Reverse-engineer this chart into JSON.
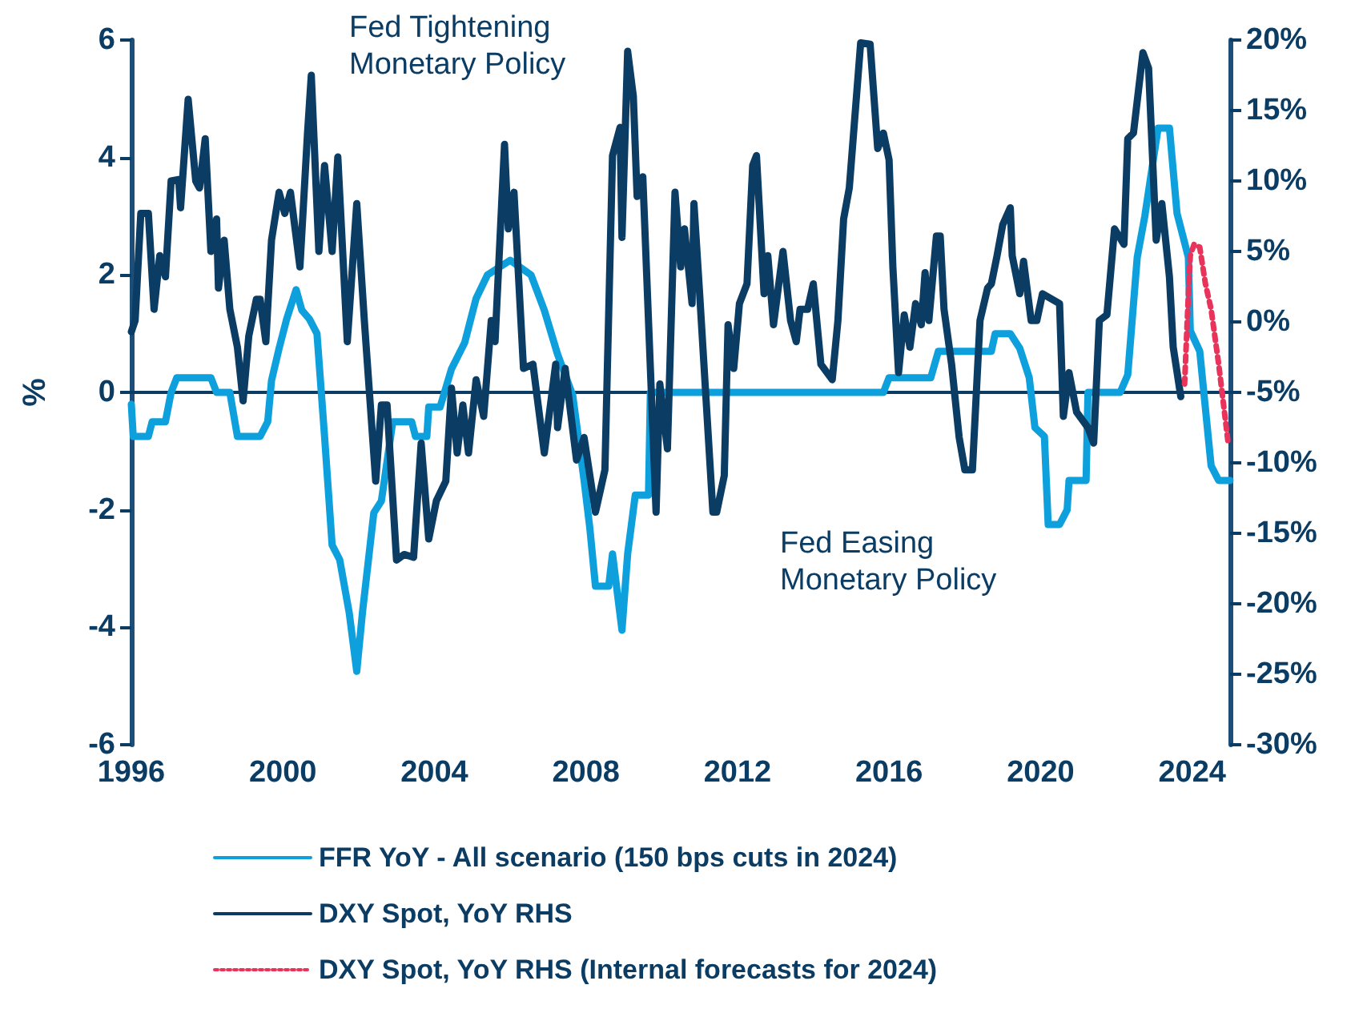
{
  "chart_data": {
    "type": "line",
    "ylabel": "%",
    "xlim": [
      1996,
      2025
    ],
    "xticks": [
      1996,
      2000,
      2004,
      2008,
      2012,
      2016,
      2020,
      2024
    ],
    "ylim": [
      -6,
      6
    ],
    "yticks": [
      -6,
      -4,
      -2,
      0,
      2,
      4,
      6
    ],
    "y2lim": [
      -30,
      20
    ],
    "y2ticks": [
      {
        "value": -30,
        "label": "-30%"
      },
      {
        "value": -25,
        "label": "-25%"
      },
      {
        "value": -20,
        "label": "-20%"
      },
      {
        "value": -15,
        "label": "-15%"
      },
      {
        "value": -10,
        "label": "-10%"
      },
      {
        "value": -5,
        "label": "-5%"
      },
      {
        "value": 0,
        "label": "0%"
      },
      {
        "value": 5,
        "label": "5%"
      },
      {
        "value": 10,
        "label": "10%"
      },
      {
        "value": 15,
        "label": "15%"
      },
      {
        "value": 20,
        "label": "20%"
      }
    ],
    "grid": false,
    "legend": "bottom",
    "marker": "none",
    "ref_lines": [
      {
        "axis": "y",
        "value": 0,
        "color": "#0b3c64"
      }
    ],
    "annotations": [
      "Fed Tightening Monetary Policy",
      "Fed Easing Monetary Policy"
    ],
    "series": [
      {
        "name": "FFR YoY - All scenario (150 bps cuts in 2024)",
        "color": "#0ea0dc",
        "line_style": "solid",
        "x": [
          1996.0,
          1996.05,
          1996.45,
          1996.55,
          1996.9,
          1997.05,
          1997.2,
          1998.1,
          1998.25,
          1998.6,
          1998.8,
          1999.4,
          1999.6,
          1999.7,
          1999.9,
          2000.1,
          2000.35,
          2000.5,
          2000.7,
          2000.9,
          2001.1,
          2001.3,
          2001.5,
          2001.75,
          2001.95,
          2002.1,
          2002.4,
          2002.6,
          2002.9,
          2003.4,
          2003.5,
          2003.8,
          2003.85,
          2004.15,
          2004.45,
          2004.8,
          2005.1,
          2005.4,
          2006.0,
          2006.55,
          2006.9,
          2007.25,
          2007.65,
          2007.95,
          2008.1,
          2008.25,
          2008.6,
          2008.7,
          2008.95,
          2009.1,
          2009.3,
          2009.65,
          2009.7,
          2015.85,
          2016.0,
          2017.1,
          2017.3,
          2018.7,
          2018.8,
          2019.2,
          2019.45,
          2019.7,
          2019.85,
          2020.1,
          2020.2,
          2020.5,
          2020.7,
          2020.75,
          2021.2,
          2021.25,
          2022.1,
          2022.3,
          2022.55,
          2022.75,
          2023.1,
          2023.4,
          2023.6,
          2023.9,
          2023.95,
          2024.2,
          2024.5,
          2024.7,
          2025.0
        ],
        "values": [
          -0.2,
          -0.75,
          -0.75,
          -0.5,
          -0.5,
          0,
          0.25,
          0.25,
          0,
          0,
          -0.75,
          -0.75,
          -0.5,
          0.2,
          0.75,
          1.25,
          1.75,
          1.4,
          1.25,
          1,
          -0.75,
          -2.6,
          -2.85,
          -3.75,
          -4.75,
          -3.75,
          -2.05,
          -1.85,
          -0.5,
          -0.5,
          -0.75,
          -0.75,
          -0.25,
          -0.25,
          0.4,
          0.85,
          1.6,
          2.0,
          2.25,
          2.0,
          1.4,
          0.65,
          -0.05,
          -1.5,
          -2.3,
          -3.3,
          -3.3,
          -2.75,
          -4.05,
          -2.75,
          -1.75,
          -1.75,
          0,
          0,
          0.25,
          0.25,
          0.7,
          0.7,
          1.0,
          1.0,
          0.75,
          0.25,
          -0.6,
          -0.75,
          -2.25,
          -2.25,
          -2.0,
          -1.5,
          -1.5,
          0,
          0,
          0.3,
          2.3,
          3.0,
          4.5,
          4.5,
          3.05,
          2.3,
          1.05,
          0.7,
          -1.25,
          -1.5,
          -1.5
        ]
      },
      {
        "name": "DXY Spot, YoY RHS",
        "color": "#0b3c64",
        "axis": "y2",
        "line_style": "solid",
        "x": [
          1996.0,
          1996.1,
          1996.25,
          1996.45,
          1996.6,
          1996.75,
          1996.9,
          1997.05,
          1997.25,
          1997.3,
          1997.5,
          1997.7,
          1997.8,
          1997.95,
          1998.1,
          1998.25,
          1998.3,
          1998.45,
          1998.6,
          1998.8,
          1998.95,
          1999.1,
          1999.3,
          1999.4,
          1999.55,
          1999.7,
          1999.9,
          2000.05,
          2000.2,
          2000.45,
          2000.65,
          2000.75,
          2000.95,
          2001.1,
          2001.3,
          2001.45,
          2001.7,
          2001.95,
          2002.15,
          2002.45,
          2002.6,
          2002.75,
          2003.0,
          2003.2,
          2003.45,
          2003.65,
          2003.85,
          2004.05,
          2004.3,
          2004.45,
          2004.6,
          2004.75,
          2004.9,
          2005.1,
          2005.3,
          2005.5,
          2005.6,
          2005.85,
          2005.95,
          2006.1,
          2006.35,
          2006.6,
          2006.9,
          2007.2,
          2007.25,
          2007.45,
          2007.75,
          2007.95,
          2008.25,
          2008.5,
          2008.7,
          2008.9,
          2008.95,
          2009.1,
          2009.25,
          2009.35,
          2009.5,
          2009.85,
          2009.95,
          2010.15,
          2010.35,
          2010.5,
          2010.6,
          2010.8,
          2010.85,
          2011.0,
          2011.35,
          2011.45,
          2011.65,
          2011.75,
          2011.9,
          2012.05,
          2012.25,
          2012.4,
          2012.5,
          2012.7,
          2012.8,
          2012.95,
          2013.2,
          2013.4,
          2013.55,
          2013.65,
          2013.85,
          2014.0,
          2014.2,
          2014.5,
          2014.65,
          2014.8,
          2014.95,
          2015.25,
          2015.5,
          2015.7,
          2015.85,
          2016.0,
          2016.1,
          2016.25,
          2016.4,
          2016.55,
          2016.7,
          2016.85,
          2016.95,
          2017.05,
          2017.25,
          2017.35,
          2017.45,
          2017.65,
          2017.85,
          2018.0,
          2018.2,
          2018.4,
          2018.6,
          2018.7,
          2018.85,
          2019.0,
          2019.2,
          2019.25,
          2019.45,
          2019.55,
          2019.75,
          2019.9,
          2020.05,
          2020.5,
          2020.6,
          2020.75,
          2020.95,
          2021.25,
          2021.4,
          2021.55,
          2021.75,
          2021.95,
          2022.2,
          2022.3,
          2022.45,
          2022.7,
          2022.85,
          2023.05,
          2023.2,
          2023.4,
          2023.5,
          2023.7
        ],
        "values": [
          -0.7,
          0.1,
          7.7,
          7.7,
          0.9,
          4.7,
          3.2,
          10,
          10.1,
          8.1,
          15.8,
          10,
          9.5,
          13,
          5,
          7.3,
          2.4,
          5.8,
          0.9,
          -1.8,
          -5.6,
          -1,
          1.6,
          1.6,
          -1.4,
          5.8,
          9.2,
          7.7,
          9.2,
          3.9,
          13.4,
          17.5,
          5,
          11.1,
          5,
          11.7,
          -1.4,
          8.4,
          0.1,
          -11.3,
          -5.9,
          -5.9,
          -16.9,
          -16.5,
          -16.7,
          -8.6,
          -15.4,
          -12.7,
          -11.3,
          -4.7,
          -9.3,
          -5.9,
          -9.3,
          -4.1,
          -6.7,
          0.1,
          -1.4,
          12.6,
          6.6,
          9.2,
          -3.3,
          -3,
          -9.3,
          -3,
          -7.5,
          -3.3,
          -9.8,
          -8.2,
          -13.5,
          -10.5,
          11.8,
          13.8,
          6,
          19.2,
          16,
          8.9,
          10.3,
          -13.5,
          -4.4,
          -9,
          9.2,
          3.9,
          6.6,
          1.3,
          8.4,
          2,
          -13.5,
          -13.5,
          -10.9,
          -0.2,
          -3.3,
          1.3,
          2.7,
          11.1,
          11.8,
          2,
          4.7,
          -0.2,
          5,
          0.1,
          -1.4,
          0.9,
          0.9,
          2.7,
          -3,
          -4.1,
          0.1,
          7.3,
          9.5,
          19.8,
          19.7,
          12.3,
          13.4,
          11.5,
          3.9,
          -3.6,
          0.5,
          -1.8,
          1.3,
          -0.2,
          3.5,
          0.1,
          6.1,
          6.1,
          0.9,
          -3,
          -8.2,
          -10.5,
          -10.5,
          0.1,
          2.4,
          2.7,
          4.7,
          6.9,
          8.1,
          4.7,
          2,
          4.3,
          0.1,
          0.1,
          2,
          1.3,
          -6.7,
          -3.6,
          -6.4,
          -7.5,
          -8.6,
          0.1,
          0.5,
          6.6,
          5.5,
          13,
          13.4,
          19.1,
          18,
          5.8,
          8.4,
          3.2,
          -1.8,
          -5.3
        ]
      },
      {
        "name": "DXY Spot, YoY RHS (Internal forecasts for 2024)",
        "color": "#e8335a",
        "axis": "y2",
        "line_style": "dotted",
        "x": [
          2023.8,
          2023.9,
          2023.95,
          2024.05,
          2024.2,
          2024.35,
          2024.5,
          2024.7,
          2024.95
        ],
        "values": [
          -4.4,
          2,
          4.7,
          5.5,
          5.3,
          2.7,
          0.9,
          -3,
          -8.6
        ]
      }
    ]
  }
}
